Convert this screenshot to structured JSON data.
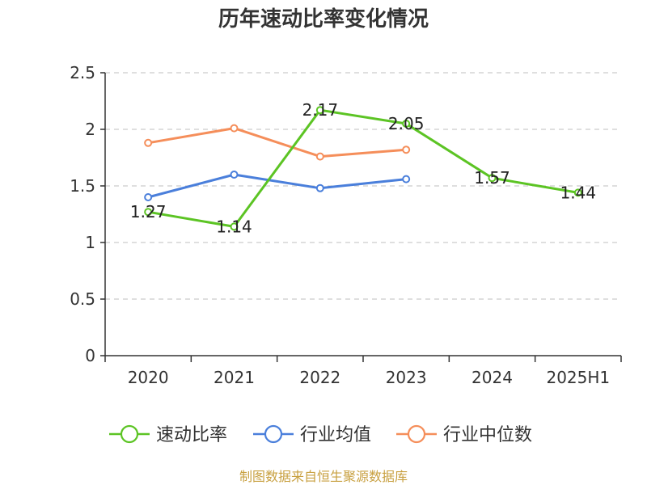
{
  "chart_data": {
    "type": "line",
    "title": "历年速动比率变化情况",
    "categories": [
      "2020",
      "2021",
      "2022",
      "2023",
      "2024",
      "2025H1"
    ],
    "ylim": [
      0,
      2.5
    ],
    "yticks": [
      "0",
      "0.5",
      "1",
      "1.5",
      "2",
      "2.5"
    ],
    "grid": true,
    "legend_position": "bottom",
    "series": [
      {
        "name": "速动比率",
        "color": "#5cc424",
        "values": [
          1.27,
          1.14,
          2.17,
          2.05,
          1.57,
          1.44
        ],
        "labels": [
          "1.27",
          "1.14",
          "2.17",
          "2.05",
          "1.57",
          "1.44"
        ]
      },
      {
        "name": "行业均值",
        "color": "#4a7fdb",
        "values": [
          1.4,
          1.6,
          1.48,
          1.56,
          null,
          null
        ]
      },
      {
        "name": "行业中位数",
        "color": "#f58e5a",
        "values": [
          1.88,
          2.01,
          1.76,
          1.82,
          null,
          null
        ]
      }
    ]
  },
  "footer": {
    "source": "制图数据来自恒生聚源数据库"
  }
}
